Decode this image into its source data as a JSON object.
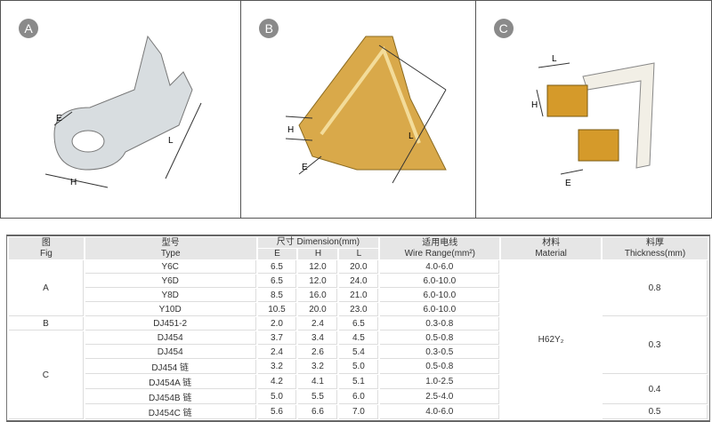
{
  "figures": [
    {
      "label": "A",
      "dims": [
        "E",
        "H",
        "L"
      ]
    },
    {
      "label": "B",
      "dims": [
        "H",
        "E",
        "L"
      ]
    },
    {
      "label": "C",
      "dims": [
        "L",
        "H",
        "E"
      ]
    }
  ],
  "table": {
    "headers": {
      "fig_cn": "图",
      "fig_en": "Fig",
      "type_cn": "型号",
      "type_en": "Type",
      "dim": "尺寸 Dimension(mm)",
      "e": "E",
      "h": "H",
      "l": "L",
      "wire_cn": "适用电线",
      "wire_en": "Wire Range(mm²)",
      "material_cn": "材料",
      "material_en": "Material",
      "thick_cn": "料厚",
      "thick_en": "Thickness(mm)"
    },
    "rows": [
      {
        "type": "Y6C",
        "e": "6.5",
        "h": "12.0",
        "l": "20.0",
        "wire": "4.0-6.0"
      },
      {
        "type": "Y6D",
        "e": "6.5",
        "h": "12.0",
        "l": "24.0",
        "wire": "6.0-10.0"
      },
      {
        "type": "Y8D",
        "e": "8.5",
        "h": "16.0",
        "l": "21.0",
        "wire": "6.0-10.0"
      },
      {
        "type": "Y10D",
        "e": "10.5",
        "h": "20.0",
        "l": "23.0",
        "wire": "6.0-10.0"
      },
      {
        "type": "DJ451-2",
        "e": "2.0",
        "h": "2.4",
        "l": "6.5",
        "wire": "0.3-0.8"
      },
      {
        "type": "DJ454",
        "e": "3.7",
        "h": "3.4",
        "l": "4.5",
        "wire": "0.5-0.8"
      },
      {
        "type": "DJ454",
        "e": "2.4",
        "h": "2.6",
        "l": "5.4",
        "wire": "0.3-0.5"
      },
      {
        "type": "DJ454 链",
        "e": "3.2",
        "h": "3.2",
        "l": "5.0",
        "wire": "0.5-0.8"
      },
      {
        "type": "DJ454A 链",
        "e": "4.2",
        "h": "4.1",
        "l": "5.1",
        "wire": "1.0-2.5"
      },
      {
        "type": "DJ454B 链",
        "e": "5.0",
        "h": "5.5",
        "l": "6.0",
        "wire": "2.5-4.0"
      },
      {
        "type": "DJ454C 链",
        "e": "5.6",
        "h": "6.6",
        "l": "7.0",
        "wire": "4.0-6.0"
      }
    ],
    "fig_groups": [
      "A",
      "B",
      "C"
    ],
    "material": "H62Y₂",
    "thickness": [
      "0.8",
      "0.3",
      "0.4",
      "0.5"
    ]
  }
}
